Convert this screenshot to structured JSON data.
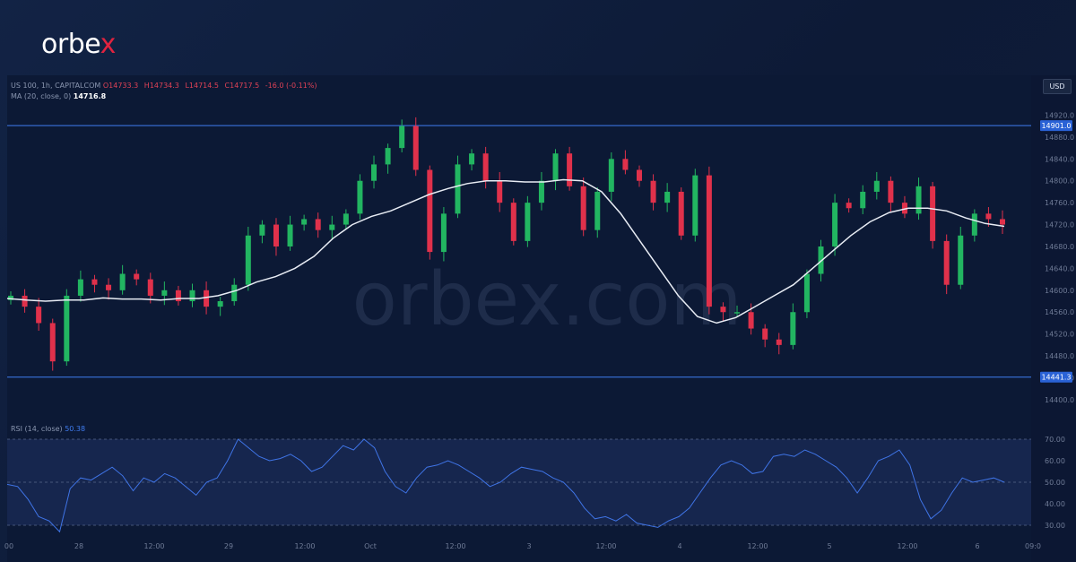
{
  "brand": {
    "logo_text_pre": "orbe",
    "logo_text_x": "x",
    "watermark": "orbex.com"
  },
  "header": {
    "symbol": "US 100, 1h, CAPITALCOM",
    "ohlc": [
      "O14733.3",
      "H14734.3",
      "L14714.5",
      "C14717.5",
      "-16.0 (-0.11%)"
    ],
    "ma_label": "MA (20, close, 0)",
    "ma_value": "14716.8",
    "currency": "USD"
  },
  "rsi": {
    "label": "RSI (14, close)",
    "value": "50.38"
  },
  "levels": {
    "upper": "14901.0",
    "lower": "14441.3"
  },
  "chart_data": [
    {
      "type": "candlestick",
      "title": "US 100, 1h, CAPITALCOM",
      "ylabel": "USD",
      "ylim": [
        14372,
        14947
      ],
      "price_ticks": [
        14400,
        14440,
        14480,
        14520,
        14560,
        14600,
        14640,
        14680,
        14720,
        14760,
        14800,
        14840,
        14880,
        14920
      ],
      "x_tick_labels": [
        "00",
        "28",
        "12:00",
        "29",
        "12:00",
        "Oct",
        "12:00",
        "3",
        "12:00",
        "4",
        "12:00",
        "5",
        "12:00",
        "6",
        "09:0"
      ],
      "horizontal_levels": [
        14901.0,
        14441.3
      ],
      "colors": {
        "up": "#22b561",
        "down": "#e0314b",
        "ma": "#e8ecf4",
        "level": "#3f7cf0"
      },
      "close_path": [
        14590,
        14570,
        14540,
        14470,
        14590,
        14620,
        14610,
        14600,
        14630,
        14620,
        14590,
        14600,
        14580,
        14600,
        14570,
        14580,
        14610,
        14700,
        14720,
        14680,
        14720,
        14730,
        14710,
        14720,
        14740,
        14800,
        14830,
        14860,
        14900,
        14820,
        14670,
        14740,
        14830,
        14850,
        14800,
        14760,
        14690,
        14760,
        14800,
        14850,
        14790,
        14710,
        14780,
        14840,
        14820,
        14800,
        14760,
        14780,
        14700,
        14810,
        14570,
        14560,
        14560,
        14530,
        14510,
        14500,
        14560,
        14630,
        14680,
        14760,
        14750,
        14780,
        14800,
        14760,
        14740,
        14790,
        14690,
        14610,
        14700,
        14740,
        14730,
        14720
      ],
      "ma_path": [
        14585,
        14582,
        14580,
        14582,
        14582,
        14586,
        14584,
        14584,
        14582,
        14585,
        14585,
        14590,
        14600,
        14615,
        14625,
        14640,
        14662,
        14695,
        14720,
        14735,
        14745,
        14760,
        14775,
        14786,
        14795,
        14800,
        14800,
        14798,
        14798,
        14802,
        14800,
        14780,
        14740,
        14690,
        14640,
        14590,
        14552,
        14540,
        14550,
        14570,
        14590,
        14610,
        14640,
        14670,
        14700,
        14725,
        14742,
        14750,
        14750,
        14745,
        14732,
        14722,
        14716.8
      ],
      "series": [
        {
          "name": "MA (20, close, 0)",
          "last": 14716.8
        }
      ]
    },
    {
      "type": "line",
      "title": "RSI (14, close)",
      "ylim": [
        25,
        75
      ],
      "y_ticks": [
        30,
        40,
        50,
        60,
        70
      ],
      "bands": [
        30,
        50,
        70
      ],
      "values": [
        49,
        48,
        42,
        34,
        32,
        27,
        47,
        52,
        51,
        54,
        57,
        53,
        46,
        52,
        50,
        54,
        52,
        48,
        44,
        50,
        52,
        60,
        70,
        66,
        62,
        60,
        61,
        63,
        60,
        55,
        57,
        62,
        67,
        65,
        70,
        66,
        55,
        48,
        45,
        52,
        57,
        58,
        60,
        58,
        55,
        52,
        48,
        50,
        54,
        57,
        56,
        55,
        52,
        50,
        45,
        38,
        33,
        34,
        32,
        35,
        31,
        30,
        29,
        32,
        34,
        38,
        45,
        52,
        58,
        60,
        58,
        54,
        55,
        62,
        63,
        62,
        65,
        63,
        60,
        57,
        52,
        45,
        52,
        60,
        62,
        65,
        58,
        42,
        33,
        37,
        45,
        52,
        50,
        51,
        52,
        50
      ],
      "last": 50.38
    }
  ]
}
